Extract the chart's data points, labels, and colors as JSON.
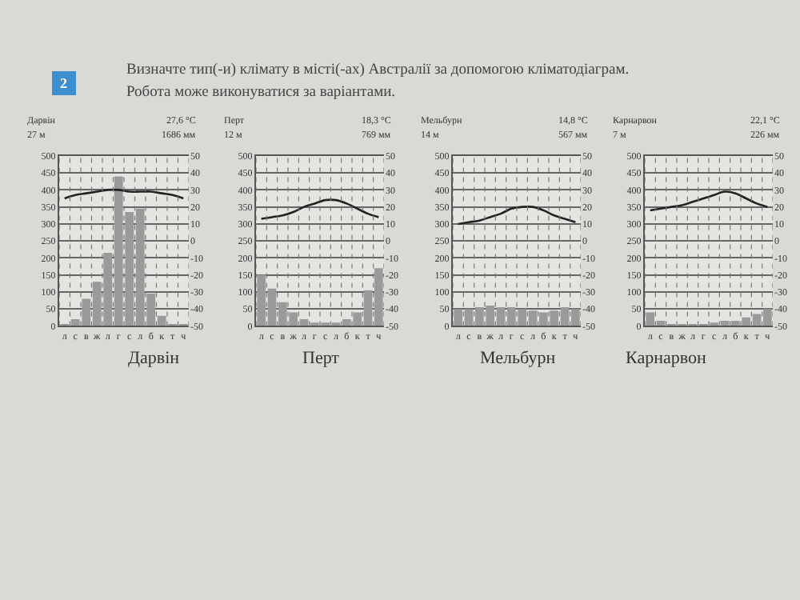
{
  "chart_data": [
    {
      "type": "other",
      "title": "Визначте тип(-и) клімату в місті(-ах) Австралії за допомогою кліматодіаграм.",
      "subtitle": "Робота може виконуватися за варіантами.",
      "annotations": [
        "2"
      ]
    },
    {
      "type": "bar",
      "xlabel": "Дарвін",
      "annotations": [
        "Дарвін",
        "27 м",
        "27,6 °C",
        "1686 мм"
      ],
      "categories": [
        "л",
        "с",
        "в",
        "ж",
        "л",
        "г",
        "с",
        "л",
        "б",
        "к",
        "т",
        "ч"
      ],
      "grid": true,
      "ylim": [
        0,
        500
      ],
      "yticks": [
        0,
        50,
        100,
        150,
        200,
        250,
        300,
        350,
        400,
        450,
        500
      ],
      "y2lim": [
        -50,
        50
      ],
      "y2ticks": [
        -50,
        -40,
        -30,
        -20,
        -10,
        0,
        10,
        20,
        30,
        40,
        50
      ],
      "series": [
        {
          "type": "bar",
          "color": "#9a9a9a",
          "values": [
            5,
            20,
            80,
            130,
            215,
            440,
            335,
            345,
            95,
            30,
            5,
            5
          ]
        },
        {
          "type": "line",
          "axis": "y2",
          "color": "#222222",
          "values": [
            25,
            27,
            28,
            29,
            30,
            30,
            29,
            29,
            29,
            28,
            27,
            25
          ]
        }
      ]
    },
    {
      "type": "bar",
      "xlabel": "Перт",
      "annotations": [
        "Перт",
        "12 м",
        "18,3 °C",
        "769 мм"
      ],
      "categories": [
        "л",
        "с",
        "в",
        "ж",
        "л",
        "г",
        "с",
        "л",
        "б",
        "к",
        "т",
        "ч"
      ],
      "grid": true,
      "ylim": [
        0,
        500
      ],
      "yticks": [
        0,
        50,
        100,
        150,
        200,
        250,
        300,
        350,
        400,
        450,
        500
      ],
      "y2lim": [
        -50,
        50
      ],
      "y2ticks": [
        -50,
        -40,
        -30,
        -20,
        -10,
        0,
        10,
        20,
        30,
        40,
        50
      ],
      "series": [
        {
          "type": "bar",
          "color": "#9a9a9a",
          "values": [
            150,
            110,
            70,
            40,
            20,
            10,
            10,
            10,
            20,
            40,
            105,
            170
          ]
        },
        {
          "type": "line",
          "axis": "y2",
          "color": "#222222",
          "values": [
            13,
            14,
            15,
            17,
            20,
            22,
            24,
            24,
            22,
            19,
            16,
            14
          ]
        }
      ]
    },
    {
      "type": "bar",
      "xlabel": "Мельбурн",
      "annotations": [
        "Мельбурн",
        "14 м",
        "14,8 °C",
        "567 мм"
      ],
      "categories": [
        "л",
        "с",
        "в",
        "ж",
        "л",
        "г",
        "с",
        "л",
        "б",
        "к",
        "т",
        "ч"
      ],
      "grid": true,
      "ylim": [
        0,
        500
      ],
      "yticks": [
        0,
        50,
        100,
        150,
        200,
        250,
        300,
        350,
        400,
        450,
        500
      ],
      "y2lim": [
        -50,
        50
      ],
      "y2ticks": [
        -50,
        -40,
        -30,
        -20,
        -10,
        0,
        10,
        20,
        30,
        40,
        50
      ],
      "series": [
        {
          "type": "bar",
          "color": "#9a9a9a",
          "values": [
            50,
            50,
            55,
            60,
            55,
            55,
            50,
            45,
            40,
            45,
            55,
            50
          ]
        },
        {
          "type": "line",
          "axis": "y2",
          "color": "#222222",
          "values": [
            10,
            11,
            12,
            14,
            16,
            19,
            20,
            20,
            18,
            15,
            13,
            11
          ]
        }
      ]
    },
    {
      "type": "bar",
      "xlabel": "Карнарвон",
      "annotations": [
        "Карнарвон",
        "7 м",
        "22,1 °C",
        "226 мм"
      ],
      "categories": [
        "л",
        "с",
        "в",
        "ж",
        "л",
        "г",
        "с",
        "л",
        "б",
        "к",
        "т",
        "ч"
      ],
      "grid": true,
      "ylim": [
        0,
        500
      ],
      "yticks": [
        0,
        50,
        100,
        150,
        200,
        250,
        300,
        350,
        400,
        450,
        500
      ],
      "y2lim": [
        -50,
        50
      ],
      "y2ticks": [
        -50,
        -40,
        -30,
        -20,
        -10,
        0,
        10,
        20,
        30,
        40,
        50
      ],
      "series": [
        {
          "type": "bar",
          "color": "#9a9a9a",
          "values": [
            40,
            15,
            5,
            5,
            5,
            5,
            10,
            15,
            15,
            25,
            35,
            50
          ]
        },
        {
          "type": "line",
          "axis": "y2",
          "color": "#222222",
          "values": [
            18,
            19,
            20,
            21,
            23,
            25,
            27,
            29,
            28,
            25,
            22,
            20
          ]
        }
      ]
    }
  ]
}
